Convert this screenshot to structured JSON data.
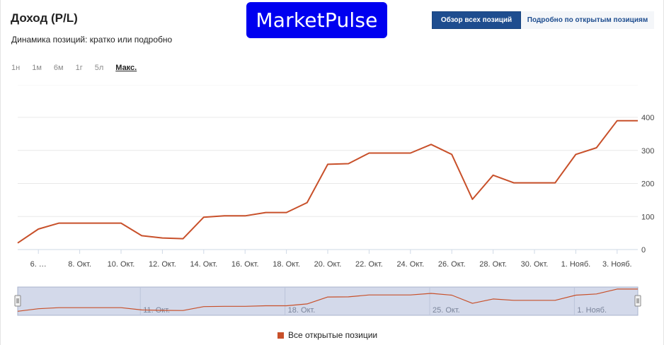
{
  "header": {
    "title": "Доход (P/L)",
    "subtitle": "Динамика позиций: кратко или подробно",
    "logo_text": "MarketPulse"
  },
  "tabs": [
    {
      "label": "Обзор всех позиций",
      "active": true
    },
    {
      "label": "Подробно по открытым позициям",
      "active": false
    }
  ],
  "ranges": [
    {
      "label": "1н",
      "active": false
    },
    {
      "label": "1м",
      "active": false
    },
    {
      "label": "6м",
      "active": false
    },
    {
      "label": "1г",
      "active": false
    },
    {
      "label": "5л",
      "active": false
    },
    {
      "label": "Макс.",
      "active": true
    }
  ],
  "colors": {
    "series": "#c8502a",
    "grid": "#e8e8e8",
    "navigator_fill": "#d3d9ea",
    "navigator_border": "#a9b3cc"
  },
  "chart_data": {
    "type": "line",
    "series": [
      {
        "name": "Все открытые позиции",
        "points": [
          {
            "date": "2023-10-05",
            "value": 20
          },
          {
            "date": "2023-10-06",
            "value": 62
          },
          {
            "date": "2023-10-07",
            "value": 80
          },
          {
            "date": "2023-10-08",
            "value": 80
          },
          {
            "date": "2023-10-09",
            "value": 80
          },
          {
            "date": "2023-10-10",
            "value": 80
          },
          {
            "date": "2023-10-11",
            "value": 42
          },
          {
            "date": "2023-10-12",
            "value": 35
          },
          {
            "date": "2023-10-13",
            "value": 33
          },
          {
            "date": "2023-10-14",
            "value": 98
          },
          {
            "date": "2023-10-15",
            "value": 102
          },
          {
            "date": "2023-10-16",
            "value": 102
          },
          {
            "date": "2023-10-17",
            "value": 112
          },
          {
            "date": "2023-10-18",
            "value": 112
          },
          {
            "date": "2023-10-19",
            "value": 142
          },
          {
            "date": "2023-10-20",
            "value": 258
          },
          {
            "date": "2023-10-21",
            "value": 260
          },
          {
            "date": "2023-10-22",
            "value": 292
          },
          {
            "date": "2023-10-23",
            "value": 292
          },
          {
            "date": "2023-10-24",
            "value": 292
          },
          {
            "date": "2023-10-25",
            "value": 318
          },
          {
            "date": "2023-10-26",
            "value": 288
          },
          {
            "date": "2023-10-27",
            "value": 152
          },
          {
            "date": "2023-10-28",
            "value": 225
          },
          {
            "date": "2023-10-29",
            "value": 202
          },
          {
            "date": "2023-10-30",
            "value": 202
          },
          {
            "date": "2023-10-31",
            "value": 202
          },
          {
            "date": "2023-11-01",
            "value": 288
          },
          {
            "date": "2023-11-02",
            "value": 308
          },
          {
            "date": "2023-11-03",
            "value": 390
          },
          {
            "date": "2023-11-04",
            "value": 390
          }
        ]
      }
    ],
    "y_ticks": [
      "0",
      "100",
      "200",
      "300",
      "400"
    ],
    "ylim": [
      0,
      400
    ],
    "x_tick_labels": [
      "6. …",
      "8. Окт.",
      "10. Окт.",
      "12. Окт.",
      "14. Окт.",
      "16. Окт.",
      "18. Окт.",
      "20. Окт.",
      "22. Окт.",
      "24. Окт.",
      "26. Окт.",
      "28. Окт.",
      "30. Окт.",
      "1. Нояб.",
      "3. Нояб."
    ],
    "navigator_labels": [
      "11. Окт.",
      "18. Окт.",
      "25. Окт.",
      "1. Нояб."
    ],
    "grid": true,
    "legend": "bottom"
  }
}
